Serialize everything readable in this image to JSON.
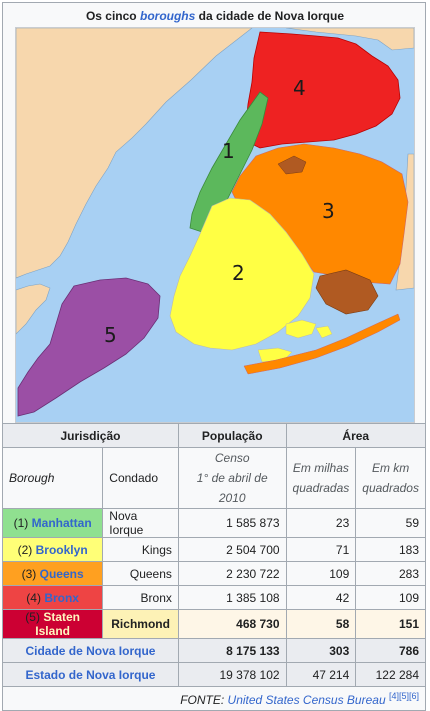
{
  "title": {
    "prefix": "Os cinco ",
    "link": "boroughs",
    "suffix": " da cidade de Nova Iorque"
  },
  "map": {
    "labels": [
      "1",
      "2",
      "3",
      "4",
      "5"
    ],
    "colors": {
      "water": "#a8d0f3",
      "land": "#f7d7ad",
      "manhattan": "#5cb85c",
      "brooklyn": "#ffff44",
      "queens": "#ff8800",
      "bronx": "#ee2222",
      "staten_island": "#9b4fa5",
      "islands": "#b05a22"
    }
  },
  "table": {
    "headers": {
      "jurisdicao": "Jurisdição",
      "populacao": "População",
      "area": "Área"
    },
    "sub": {
      "borough": "Borough",
      "condado": "Condado",
      "censo_1": "Censo",
      "censo_2": "1° de abril de 2010",
      "milhas_1": "Em milhas",
      "milhas_2": "quadradas",
      "km_1": "Em km",
      "km_2": "quadrados"
    },
    "rows": [
      {
        "num": "(1)",
        "name": "Manhattan",
        "county": "Nova Iorque",
        "pop": "1 585 873",
        "mi": "23",
        "km": "59",
        "color": "#90e090"
      },
      {
        "num": "(2)",
        "name": "Brooklyn",
        "county": "Kings",
        "pop": "2 504 700",
        "mi": "71",
        "km": "183",
        "color": "#ffff77"
      },
      {
        "num": "(3)",
        "name": "Queens",
        "county": "Queens",
        "pop": "2 230 722",
        "mi": "109",
        "km": "283",
        "color": "#ffa020"
      },
      {
        "num": "(4)",
        "name": "Bronx",
        "county": "Bronx",
        "pop": "1 385 108",
        "mi": "42",
        "km": "109",
        "color": "#ee4444"
      },
      {
        "num": "(5)",
        "name": "Staten Island",
        "county": "Richmond",
        "pop": "468 730",
        "mi": "58",
        "km": "151",
        "color": "#cc0033"
      }
    ],
    "city": {
      "name": "Cidade de Nova Iorque",
      "pop": "8 175 133",
      "mi": "303",
      "km": "786"
    },
    "state": {
      "name": "Estado de Nova Iorque",
      "pop": "19 378 102",
      "mi": "47 214",
      "km": "122 284"
    },
    "source": {
      "prefix": "FONTE: ",
      "link": "United States Census Bureau",
      "refs": "[4][5][6]"
    }
  }
}
